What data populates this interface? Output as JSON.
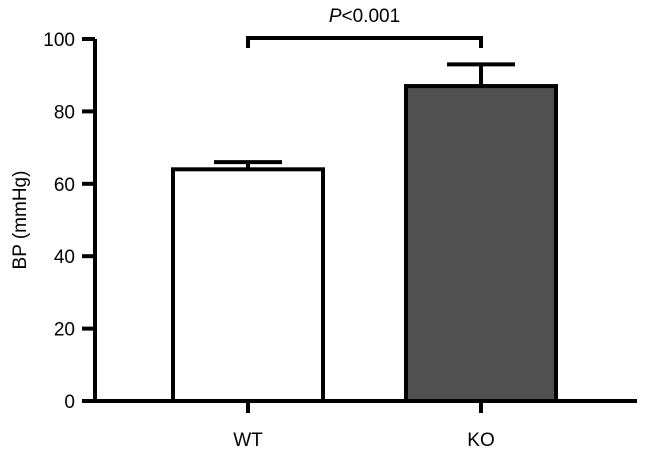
{
  "chart_data": {
    "type": "bar",
    "title": "",
    "xlabel": "",
    "ylabel": "BP (mmHg)",
    "ylim": [
      0,
      100
    ],
    "yticks": [
      0,
      20,
      40,
      60,
      80,
      100
    ],
    "categories": [
      "WT",
      "KO"
    ],
    "values": [
      64,
      87
    ],
    "errors": [
      2,
      6
    ],
    "bar_colors": [
      "#ffffff",
      "#505050"
    ],
    "edge_color": "#000000",
    "grid": false,
    "legend": "none",
    "annotations": [
      {
        "between": [
          "WT",
          "KO"
        ],
        "text_italic": "P",
        "text_rest": "<0.001"
      }
    ]
  }
}
